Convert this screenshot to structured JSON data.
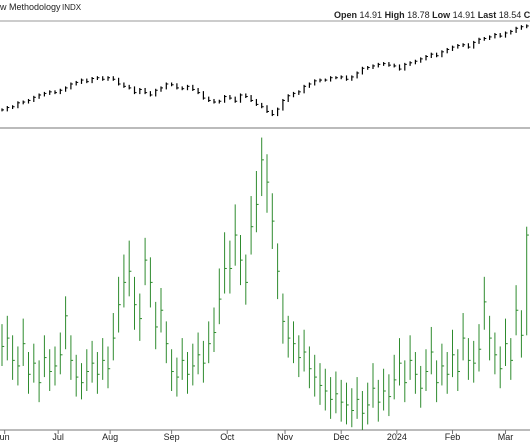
{
  "chart_data": {
    "type": "ohlc",
    "title": "w Methodology",
    "symbol": "INDX",
    "quote": [
      {
        "label": "Open",
        "value": 14.91
      },
      {
        "label": "High",
        "value": 18.78
      },
      {
        "label": "Low",
        "value": 14.91
      },
      {
        "label": "Last",
        "value": 18.54
      },
      {
        "label": "Ch"
      }
    ],
    "xlim": [
      0,
      99
    ],
    "xticks": [
      {
        "value": 0.5,
        "label": "un"
      },
      {
        "value": 10.6,
        "label": "Jul"
      },
      {
        "value": 20.4,
        "label": "Aug"
      },
      {
        "value": 32,
        "label": "Sep"
      },
      {
        "value": 42.5,
        "label": "Oct"
      },
      {
        "value": 53.4,
        "label": "Nov"
      },
      {
        "value": 64,
        "label": "Dec"
      },
      {
        "value": 74.5,
        "label": "2024"
      },
      {
        "value": 85,
        "label": "Feb"
      },
      {
        "value": 95,
        "label": "Mar"
      }
    ],
    "upper": {
      "color": "#000000",
      "ylim": [
        4000,
        5300
      ],
      "values": [
        4180,
        4210,
        4220,
        4270,
        4280,
        4300,
        4340,
        4370,
        4390,
        4410,
        4400,
        4430,
        4460,
        4510,
        4530,
        4560,
        4540,
        4580,
        4590,
        4570,
        4590,
        4570,
        4510,
        4480,
        4460,
        4400,
        4440,
        4400,
        4370,
        4430,
        4460,
        4510,
        4500,
        4460,
        4450,
        4480,
        4440,
        4400,
        4330,
        4300,
        4280,
        4290,
        4350,
        4330,
        4290,
        4370,
        4350,
        4300,
        4250,
        4220,
        4160,
        4120,
        4190,
        4300,
        4360,
        4390,
        4410,
        4480,
        4510,
        4550,
        4560,
        4560,
        4590,
        4590,
        4600,
        4570,
        4600,
        4650,
        4710,
        4720,
        4740,
        4760,
        4770,
        4750,
        4740,
        4700,
        4760,
        4780,
        4800,
        4830,
        4860,
        4890,
        4870,
        4920,
        4950,
        4980,
        5000,
        5010,
        4980,
        5040,
        5080,
        5090,
        5110,
        5140,
        5120,
        5160,
        5180,
        5220,
        5240,
        5250
      ]
    },
    "lower": {
      "color": "#2e8b2e",
      "ylim": [
        11.5,
        22.2
      ],
      "close": [
        14.5,
        14.8,
        14.0,
        13.8,
        14.6,
        13.5,
        13.9,
        13.2,
        14.1,
        13.6,
        13.8,
        14.2,
        15.6,
        14.0,
        13.4,
        13.2,
        13.6,
        13.9,
        13.5,
        14.0,
        13.7,
        14.8,
        16.0,
        16.8,
        17.2,
        16.0,
        15.5,
        17.6,
        16.8,
        15.2,
        15.8,
        14.6,
        13.6,
        13.4,
        14.0,
        13.5,
        13.8,
        14.2,
        13.9,
        14.6,
        15.0,
        16.2,
        17.3,
        17.3,
        18.5,
        17.6,
        16.8,
        18.8,
        19.6,
        21.2,
        20.4,
        19.0,
        17.2,
        15.4,
        14.8,
        14.6,
        14.1,
        14.3,
        13.7,
        13.4,
        13.1,
        12.9,
        12.6,
        12.8,
        12.5,
        12.4,
        12.2,
        12.6,
        12.1,
        12.4,
        13.0,
        12.5,
        12.9,
        12.7,
        13.3,
        13.9,
        13.2,
        14.0,
        13.5,
        13.0,
        13.6,
        14.3,
        13.2,
        13.8,
        13.5,
        14.2,
        13.6,
        14.8,
        14.0,
        13.9,
        14.4,
        16.1,
        14.8,
        14.2,
        13.7,
        14.6,
        14.0,
        15.8,
        14.9,
        18.5
      ],
      "high": [
        15.3,
        15.6,
        14.9,
        14.5,
        15.5,
        14.3,
        14.6,
        14.0,
        14.9,
        14.4,
        14.5,
        15.0,
        16.3,
        14.9,
        14.2,
        13.9,
        14.4,
        14.7,
        14.3,
        14.8,
        14.5,
        15.7,
        17.0,
        17.8,
        18.3,
        17.0,
        16.4,
        18.4,
        17.7,
        16.1,
        16.6,
        15.4,
        14.4,
        14.1,
        14.8,
        14.3,
        14.6,
        15.0,
        14.7,
        15.4,
        15.9,
        17.3,
        18.6,
        18.3,
        19.6,
        18.5,
        17.8,
        19.9,
        20.8,
        22.0,
        21.4,
        20.0,
        18.2,
        16.4,
        15.6,
        15.4,
        14.9,
        15.1,
        14.5,
        14.2,
        13.9,
        13.7,
        13.4,
        13.6,
        13.3,
        13.2,
        13.0,
        13.4,
        12.9,
        13.2,
        13.9,
        13.3,
        13.7,
        13.5,
        14.2,
        14.8,
        14.0,
        14.9,
        14.3,
        13.8,
        14.4,
        15.2,
        14.0,
        14.6,
        14.3,
        15.1,
        14.4,
        15.7,
        14.8,
        14.7,
        15.3,
        17.0,
        15.6,
        15.0,
        14.5,
        15.5,
        14.8,
        16.7,
        15.8,
        18.8
      ],
      "low": [
        13.8,
        14.0,
        13.3,
        13.1,
        13.8,
        12.8,
        13.2,
        12.5,
        13.4,
        12.9,
        13.1,
        13.5,
        14.4,
        13.3,
        12.7,
        12.6,
        12.9,
        13.2,
        12.8,
        13.3,
        13.0,
        14.0,
        15.0,
        15.9,
        16.3,
        15.1,
        14.7,
        16.7,
        15.9,
        14.4,
        15.0,
        13.9,
        12.9,
        12.7,
        13.3,
        12.8,
        13.1,
        13.5,
        13.2,
        13.9,
        14.3,
        15.3,
        16.4,
        16.4,
        17.4,
        16.7,
        16.0,
        17.8,
        18.6,
        19.9,
        19.3,
        18.0,
        16.2,
        14.6,
        14.1,
        13.9,
        13.4,
        13.6,
        13.0,
        12.7,
        12.4,
        12.2,
        11.9,
        12.1,
        11.8,
        11.7,
        11.6,
        11.9,
        11.5,
        11.7,
        12.3,
        11.8,
        12.2,
        12.0,
        12.6,
        13.1,
        12.5,
        13.3,
        12.8,
        12.3,
        12.9,
        13.5,
        12.5,
        13.1,
        12.8,
        13.4,
        12.9,
        14.0,
        13.3,
        13.2,
        13.6,
        15.1,
        14.0,
        13.5,
        13.0,
        13.8,
        13.3,
        14.9,
        14.1,
        14.9
      ]
    }
  }
}
